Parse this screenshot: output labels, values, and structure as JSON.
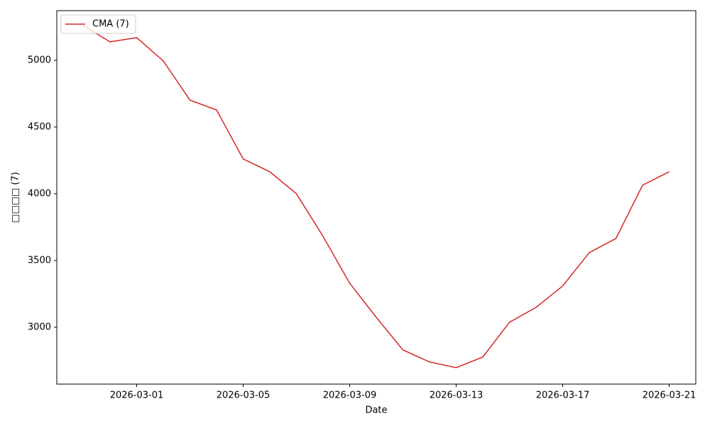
{
  "chart_data": {
    "type": "line",
    "x_label": "Date",
    "y_label": "□□□□ (7)",
    "x": [
      "2026-02-27",
      "2026-02-28",
      "2026-03-01",
      "2026-03-02",
      "2026-03-03",
      "2026-03-04",
      "2026-03-05",
      "2026-03-06",
      "2026-03-07",
      "2026-03-08",
      "2026-03-09",
      "2026-03-10",
      "2026-03-11",
      "2026-03-12",
      "2026-03-13",
      "2026-03-14",
      "2026-03-15",
      "2026-03-16",
      "2026-03-17",
      "2026-03-18",
      "2026-03-19",
      "2026-03-20",
      "2026-03-21"
    ],
    "series": [
      {
        "name": "CMA (7)",
        "color": "#d62728",
        "values": [
          5260,
          5138,
          5170,
          4995,
          4702,
          4628,
          4261,
          4165,
          4000,
          3681,
          3330,
          3074,
          2830,
          2740,
          2697,
          2777,
          3037,
          3149,
          3309,
          3559,
          3665,
          4064,
          4165
        ]
      }
    ],
    "xlim": [
      "2026-02-26",
      "2026-03-22"
    ],
    "xticks": [
      "2026-03-01",
      "2026-03-05",
      "2026-03-09",
      "2026-03-13",
      "2026-03-17",
      "2026-03-21"
    ],
    "ylim": [
      2574,
      5372
    ],
    "yticks": [
      3000,
      3500,
      4000,
      4500,
      5000
    ],
    "grid": false,
    "legend": "upper-left"
  }
}
